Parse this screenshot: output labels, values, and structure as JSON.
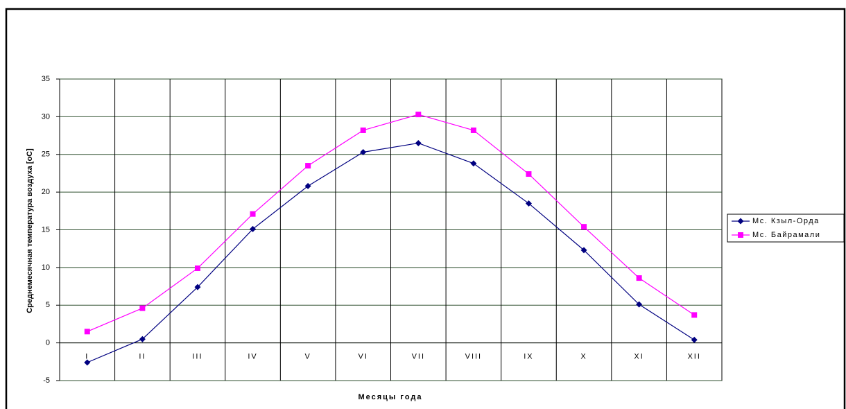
{
  "chart_data": {
    "type": "line",
    "y_label": "Среднемесячная температура воздуха [oC]",
    "x_label": "Месяцы года",
    "categories": [
      "I",
      "II",
      "III",
      "IV",
      "V",
      "VI",
      "VII",
      "VIII",
      "IX",
      "X",
      "XI",
      "XII"
    ],
    "series": [
      {
        "name": "Мс. Кзыл-Орда",
        "color": "#000080",
        "marker": "diamond",
        "values": [
          -2.6,
          0.5,
          7.4,
          15.1,
          20.8,
          25.3,
          26.5,
          23.8,
          18.5,
          12.3,
          5.1,
          0.4
        ]
      },
      {
        "name": "Мс. Байрамали",
        "color": "#ff00ff",
        "marker": "square",
        "values": [
          1.5,
          4.6,
          9.9,
          17.1,
          23.5,
          28.2,
          30.3,
          28.2,
          22.4,
          15.4,
          8.6,
          3.7
        ]
      }
    ],
    "ylim": [
      -5,
      35
    ],
    "yticks": [
      -5,
      0,
      5,
      10,
      15,
      20,
      25,
      30,
      35
    ],
    "grid": true,
    "legend": "right"
  }
}
